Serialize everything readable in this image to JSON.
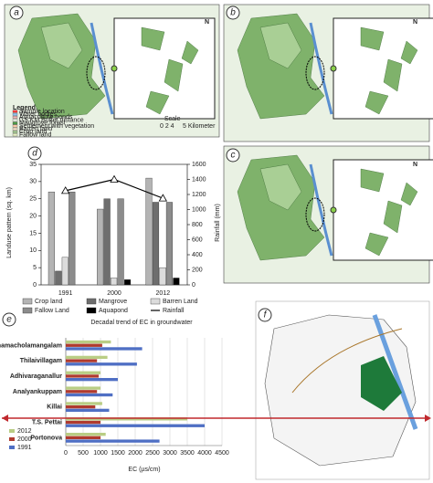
{
  "maps": {
    "panels": [
      "a",
      "b",
      "c",
      "f"
    ],
    "legend_title": "Legend",
    "legend_items": [
      "Sample location",
      "Water bodies",
      "Aquaculture ponds",
      "0.5 KM Buffer distance",
      "Mangrove forest",
      "Settlement with vegetation",
      "Barren land",
      "Crop land",
      "Fallow land"
    ],
    "scale_label": "Scale",
    "scale_ticks": "0  2  4",
    "scale_unit": "5 Kilometer",
    "north": "N"
  },
  "chart_data": [
    {
      "type": "bar",
      "panel": "d",
      "categories": [
        "1991",
        "2000",
        "2012"
      ],
      "ylabel": "Landuse pattern (sq. km)",
      "y2label": "Rainfall (mm)",
      "ylim": [
        0,
        35
      ],
      "yticks": [
        0,
        5,
        10,
        15,
        20,
        25,
        30,
        35
      ],
      "y2lim": [
        0,
        1600
      ],
      "y2ticks": [
        0,
        200,
        400,
        600,
        800,
        1000,
        1200,
        1400,
        1600
      ],
      "series": [
        {
          "name": "Crop land",
          "color": "#b4b4b4",
          "values": [
            27,
            22,
            31
          ]
        },
        {
          "name": "Mangrove",
          "color": "#6e6e6e",
          "values": [
            4,
            25,
            24
          ]
        },
        {
          "name": "Barren Land",
          "color": "#dcdcdc",
          "values": [
            8,
            2,
            5
          ]
        },
        {
          "name": "Fallow Land",
          "color": "#8c8c8c",
          "values": [
            27,
            25,
            24
          ]
        },
        {
          "name": "Aquapond",
          "color": "#000000",
          "values": [
            0,
            1.5,
            2
          ]
        },
        {
          "name": "Rainfall",
          "type": "line",
          "axis": "y2",
          "color": "#000000",
          "values": [
            1250,
            1400,
            1150
          ]
        }
      ]
    },
    {
      "type": "hbar",
      "panel": "e",
      "title": "Decadal trend of EC in groundwater",
      "xlabel": "EC (µs/cm)",
      "categories": [
        "Uthamacholamangalam",
        "Thilaivillagam",
        "Adhivaraganallur",
        "Analyankuppam",
        "Killai",
        "T.S. Pettai",
        "Portonova"
      ],
      "xlim": [
        0,
        4500
      ],
      "xticks": [
        0,
        500,
        1000,
        1500,
        2000,
        2500,
        3000,
        3500,
        4000,
        4500
      ],
      "grid": true,
      "series": [
        {
          "name": "2012",
          "color": "#b9cd84",
          "values": [
            1300,
            1200,
            1000,
            1000,
            1050,
            3500,
            1150
          ]
        },
        {
          "name": "2000",
          "color": "#b03a2e",
          "values": [
            1050,
            900,
            950,
            900,
            850,
            1000,
            1000
          ]
        },
        {
          "name": "1991",
          "color": "#4f6fc4",
          "values": [
            2200,
            2050,
            1500,
            1350,
            1250,
            4000,
            2700
          ]
        }
      ]
    }
  ]
}
